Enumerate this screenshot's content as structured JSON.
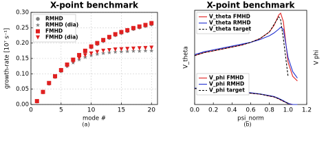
{
  "chart_data": [
    {
      "type": "scatter",
      "title": "X-point benchmark",
      "x_label": "mode #",
      "y_label": "growth-rate [10⁷ s⁻¹]",
      "caption": "(a)",
      "x": [
        1,
        2,
        3,
        4,
        5,
        6,
        7,
        8,
        9,
        10,
        11,
        12,
        13,
        14,
        15,
        16,
        17,
        18,
        19,
        20
      ],
      "series": [
        {
          "name": "RMHD",
          "color": "#808080",
          "marker": "hexagon",
          "values": [
            0.01,
            0.04,
            0.068,
            0.09,
            0.11,
            0.128,
            0.144,
            0.158,
            0.172,
            0.186,
            0.197,
            0.207,
            0.217,
            0.226,
            0.233,
            0.239,
            0.246,
            0.251,
            0.256,
            0.261
          ]
        },
        {
          "name": "RMHD (dia)",
          "color": "#808080",
          "marker": "star",
          "values": [
            0.01,
            0.04,
            0.068,
            0.09,
            0.108,
            0.124,
            0.136,
            0.146,
            0.154,
            0.16,
            0.164,
            0.167,
            0.169,
            0.171,
            0.172,
            0.173,
            0.174,
            0.174,
            0.175,
            0.175
          ]
        },
        {
          "name": "FMHD",
          "color": "#e02020",
          "marker": "square",
          "values": [
            0.011,
            0.041,
            0.07,
            0.092,
            0.112,
            0.13,
            0.146,
            0.161,
            0.175,
            0.189,
            0.2,
            0.21,
            0.22,
            0.229,
            0.236,
            0.242,
            0.249,
            0.254,
            0.259,
            0.265
          ]
        },
        {
          "name": "FMHD (dia)",
          "color": "#e02020",
          "marker": "triangle_down",
          "values": [
            0.01,
            0.04,
            0.069,
            0.091,
            0.11,
            0.127,
            0.14,
            0.151,
            0.16,
            0.166,
            0.171,
            0.175,
            0.177,
            0.179,
            0.18,
            0.181,
            0.182,
            0.183,
            0.184,
            0.185
          ]
        }
      ],
      "xlim": [
        0,
        21
      ],
      "ylim": [
        0,
        0.3
      ],
      "xticks": [
        0,
        5,
        10,
        15,
        20
      ],
      "yticks": [
        {
          "value": 0,
          "label": "0.00"
        },
        0.05,
        {
          "value": 0.1,
          "label": "0.10"
        },
        0.15,
        {
          "value": 0.2,
          "label": "0.20"
        },
        0.25,
        {
          "value": 0.3,
          "label": "0.30"
        }
      ],
      "grid": true,
      "legend": "upper left"
    },
    {
      "type": "line",
      "title": "X-point benchmark",
      "x_label": "psi_norm",
      "y_label": "V_theta",
      "y2_label": "V phi",
      "caption": "(b)",
      "x": [
        0,
        0.1,
        0.2,
        0.3,
        0.4,
        0.5,
        0.6,
        0.7,
        0.8,
        0.85,
        0.9,
        0.92,
        0.95,
        1.0,
        1.05,
        1.1
      ],
      "series": [
        {
          "name": "V_theta FMHD",
          "color": "#e02020",
          "dash": false,
          "values": [
            0.52,
            0.55,
            0.57,
            0.59,
            0.61,
            0.63,
            0.66,
            0.7,
            0.77,
            0.84,
            0.95,
            0.97,
            0.88,
            0.45,
            0.3,
            0.25
          ]
        },
        {
          "name": "V_theta RMHD",
          "color": "#2030d0",
          "dash": false,
          "values": [
            0.53,
            0.56,
            0.58,
            0.6,
            0.62,
            0.64,
            0.66,
            0.69,
            0.73,
            0.76,
            0.8,
            0.82,
            0.8,
            0.5,
            0.35,
            0.28
          ]
        },
        {
          "name": "V_theta target",
          "color": "#000000",
          "dash": true,
          "values": [
            0.52,
            0.55,
            0.57,
            0.59,
            0.61,
            0.63,
            0.66,
            0.7,
            0.77,
            0.85,
            0.93,
            0.9,
            0.7,
            0.3,
            null,
            null
          ]
        },
        {
          "name": "V_phi FMHD",
          "color": "#e02020",
          "dash": false,
          "axis": "y2",
          "values": [
            0.17,
            0.16,
            0.155,
            0.15,
            0.14,
            0.13,
            0.12,
            0.11,
            0.09,
            0.08,
            0.06,
            0.05,
            0.035,
            0.01,
            0.0,
            0.0
          ]
        },
        {
          "name": "V_phi RMHD",
          "color": "#2030d0",
          "dash": false,
          "axis": "y2",
          "values": [
            0.175,
            0.165,
            0.16,
            0.155,
            0.145,
            0.135,
            0.125,
            0.112,
            0.095,
            0.085,
            0.065,
            0.055,
            0.04,
            0.012,
            0.0,
            0.0
          ]
        },
        {
          "name": "V_phi target",
          "color": "#000000",
          "dash": true,
          "axis": "y2",
          "values": [
            0.17,
            0.16,
            0.155,
            0.15,
            0.14,
            0.13,
            0.12,
            0.11,
            0.09,
            0.08,
            0.06,
            0.05,
            0.035,
            0.01,
            null,
            null
          ]
        }
      ],
      "xlim": [
        0,
        1.2
      ],
      "ylim": [
        0,
        1
      ],
      "y2lim": [
        0,
        1
      ],
      "xticks": [
        {
          "value": 0,
          "label": "0.0"
        },
        0.2,
        0.4,
        0.6,
        0.8,
        {
          "value": 1,
          "label": "1.0"
        },
        1.2
      ],
      "grid": false,
      "legend": "upper left",
      "legend2": "lower left"
    }
  ]
}
